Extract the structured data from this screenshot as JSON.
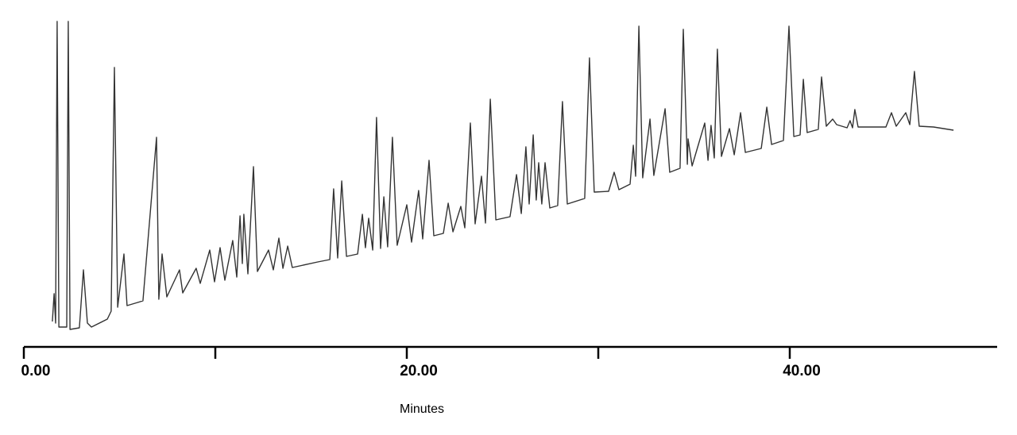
{
  "chart_data": {
    "type": "line",
    "x_label": "Minutes",
    "color": "#333333",
    "x": [
      1.49,
      1.58,
      1.66,
      1.74,
      1.83,
      2.24,
      2.32,
      2.41,
      2.9,
      3.11,
      3.32,
      3.53,
      4.36,
      4.56,
      4.73,
      4.9,
      5.23,
      5.39,
      5.81,
      6.22,
      6.93,
      7.05,
      7.22,
      7.47,
      8.13,
      8.3,
      9.0,
      9.21,
      9.71,
      9.96,
      10.25,
      10.5,
      10.91,
      11.12,
      11.29,
      11.41,
      11.49,
      11.7,
      11.99,
      12.2,
      12.78,
      13.03,
      13.32,
      13.53,
      13.78,
      14.02,
      15.35,
      15.98,
      16.18,
      16.39,
      16.6,
      16.85,
      17.43,
      17.68,
      17.84,
      18.01,
      18.22,
      18.42,
      18.63,
      18.8,
      19.0,
      19.25,
      19.5,
      20.0,
      20.25,
      20.62,
      20.83,
      21.16,
      21.41,
      21.91,
      22.16,
      22.41,
      22.82,
      23.03,
      23.32,
      23.57,
      23.9,
      24.11,
      24.36,
      24.65,
      25.39,
      25.73,
      25.98,
      26.22,
      26.39,
      26.6,
      26.76,
      26.89,
      27.05,
      27.22,
      27.47,
      27.88,
      28.13,
      28.38,
      29.29,
      29.54,
      29.79,
      30.54,
      30.83,
      31.08,
      31.66,
      31.83,
      31.95,
      32.12,
      32.32,
      32.7,
      32.9,
      33.49,
      33.73,
      34.27,
      34.44,
      34.65,
      34.69,
      34.9,
      35.56,
      35.73,
      35.89,
      36.06,
      36.22,
      36.43,
      36.85,
      37.1,
      37.43,
      37.68,
      38.51,
      38.8,
      39.05,
      39.67,
      39.96,
      40.21,
      40.54,
      40.71,
      40.91,
      41.49,
      41.66,
      41.91,
      42.24,
      42.45,
      42.99,
      43.15,
      43.28,
      43.4,
      43.57,
      45.02,
      45.31,
      45.56,
      46.06,
      46.27,
      46.51,
      46.76,
      47.51,
      48.55
    ],
    "values": [
      32,
      67,
      30,
      410,
      25,
      25,
      410,
      22,
      24,
      97,
      30,
      25,
      35,
      45,
      352,
      50,
      117,
      52,
      55,
      58,
      264,
      60,
      117,
      63,
      97,
      68,
      99,
      80,
      122,
      82,
      125,
      84,
      134,
      88,
      165,
      105,
      167,
      92,
      227,
      95,
      122,
      97,
      137,
      99,
      127,
      100,
      107,
      110,
      199,
      112,
      209,
      114,
      117,
      167,
      125,
      162,
      122,
      289,
      124,
      189,
      126,
      264,
      128,
      179,
      132,
      197,
      136,
      235,
      140,
      143,
      181,
      145,
      177,
      150,
      282,
      155,
      215,
      156,
      312,
      160,
      164,
      217,
      168,
      252,
      180,
      267,
      185,
      232,
      180,
      232,
      175,
      178,
      309,
      180,
      187,
      364,
      195,
      196,
      220,
      198,
      205,
      254,
      215,
      404,
      213,
      287,
      216,
      300,
      220,
      225,
      400,
      230,
      262,
      228,
      282,
      235,
      279,
      238,
      375,
      240,
      275,
      242,
      295,
      245,
      250,
      302,
      255,
      260,
      404,
      265,
      267,
      337,
      270,
      274,
      340,
      278,
      287,
      280,
      276,
      285,
      276,
      299,
      277,
      277,
      295,
      278,
      295,
      280,
      347,
      278,
      277,
      273
    ],
    "xlim": [
      0,
      50.83
    ],
    "ylim": [
      0,
      410
    ],
    "xticks": [
      {
        "value": 0,
        "label": "0.00"
      },
      {
        "value": 20,
        "label": "20.00"
      },
      {
        "value": 40,
        "label": "40.00"
      }
    ],
    "x_minor_ticks": [
      10,
      30
    ]
  }
}
